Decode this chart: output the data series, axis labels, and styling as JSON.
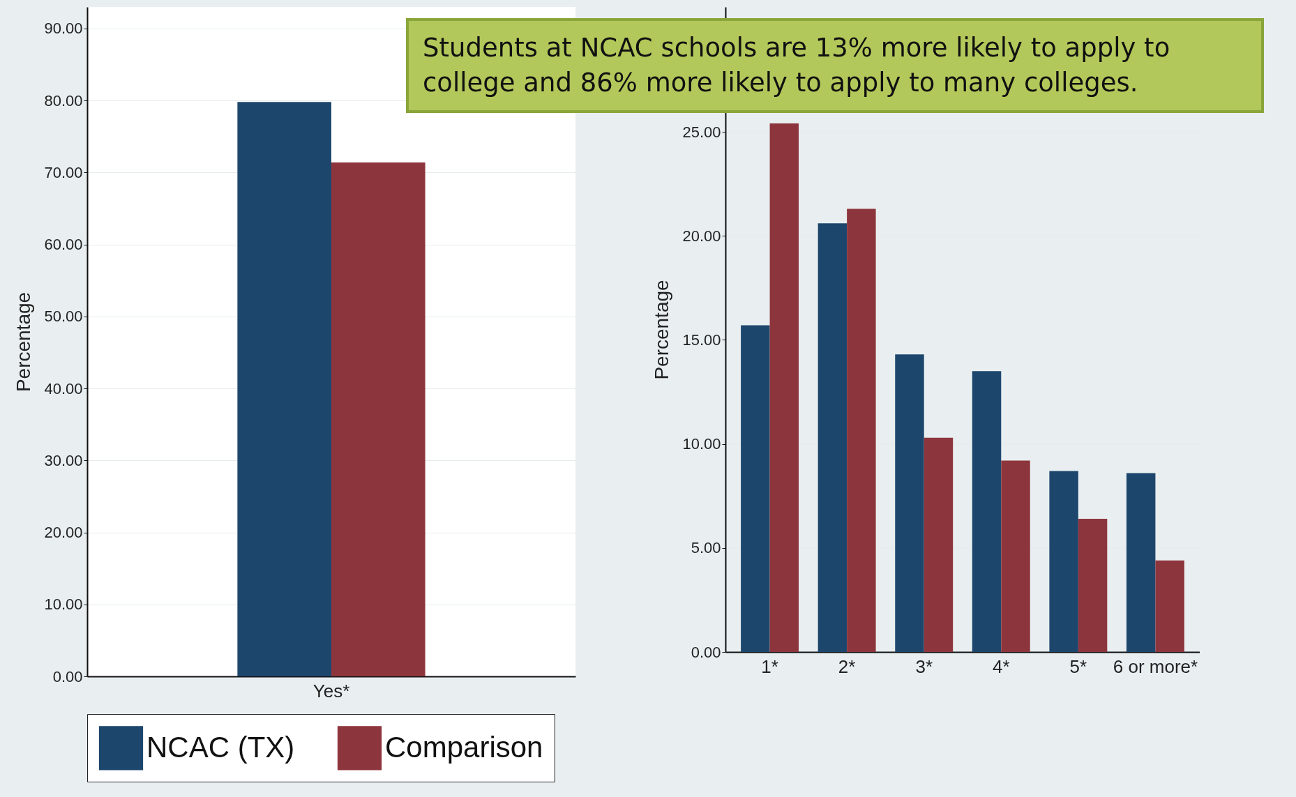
{
  "chart_data": [
    {
      "type": "bar",
      "ylabel": "Percentage",
      "categories": [
        "Yes*"
      ],
      "series": [
        {
          "name": "NCAC (TX)",
          "color": "#1d466d",
          "values": [
            79.8
          ]
        },
        {
          "name": "Comparison",
          "color": "#8d353d",
          "values": [
            71.4
          ]
        }
      ],
      "ylim": [
        0,
        93
      ],
      "yticks": [
        {
          "value": 0,
          "label": "0.00"
        },
        {
          "value": 10,
          "label": "10.00"
        },
        {
          "value": 20,
          "label": "20.00"
        },
        {
          "value": 30,
          "label": "30.00"
        },
        {
          "value": 40,
          "label": "40.00"
        },
        {
          "value": 50,
          "label": "50.00"
        },
        {
          "value": 60,
          "label": "60.00"
        },
        {
          "value": 70,
          "label": "70.00"
        },
        {
          "value": 80,
          "label": "80.00"
        },
        {
          "value": 90,
          "label": "90.00"
        }
      ],
      "grid": "y",
      "legend": "bottom"
    },
    {
      "type": "bar",
      "ylabel": "Percentage",
      "categories": [
        "1*",
        "2*",
        "3*",
        "4*",
        "5*",
        "6 or more*"
      ],
      "series": [
        {
          "name": "NCAC (TX)",
          "color": "#1d466d",
          "values": [
            15.7,
            20.6,
            14.3,
            13.5,
            8.7,
            8.6
          ]
        },
        {
          "name": "Comparison",
          "color": "#8d353d",
          "values": [
            25.4,
            21.3,
            10.3,
            9.2,
            6.4,
            4.4
          ]
        }
      ],
      "ylim": [
        0,
        31
      ],
      "yticks": [
        {
          "value": 0,
          "label": "0.00"
        },
        {
          "value": 5,
          "label": "5.00"
        },
        {
          "value": 10,
          "label": "10.00"
        },
        {
          "value": 15,
          "label": "15.00"
        },
        {
          "value": 20,
          "label": "20.00"
        },
        {
          "value": 25,
          "label": "25.00"
        }
      ],
      "grid": "y",
      "legend": "bottom",
      "annotations": [
        "Students at NCAC schools are 13% more likely to apply to college and 86% more likely to apply to many colleges."
      ]
    }
  ]
}
